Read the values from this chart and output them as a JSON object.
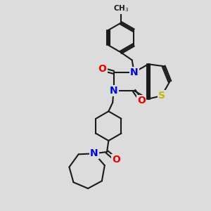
{
  "background_color": "#dcdcdc",
  "bond_color": "#1a1a1a",
  "bond_width": 1.5,
  "atom_colors": {
    "N": "#0000ee",
    "O": "#ee0000",
    "S": "#bbbb00",
    "C": "#1a1a1a"
  },
  "font_size_atom": 10,
  "dbo": 0.09
}
